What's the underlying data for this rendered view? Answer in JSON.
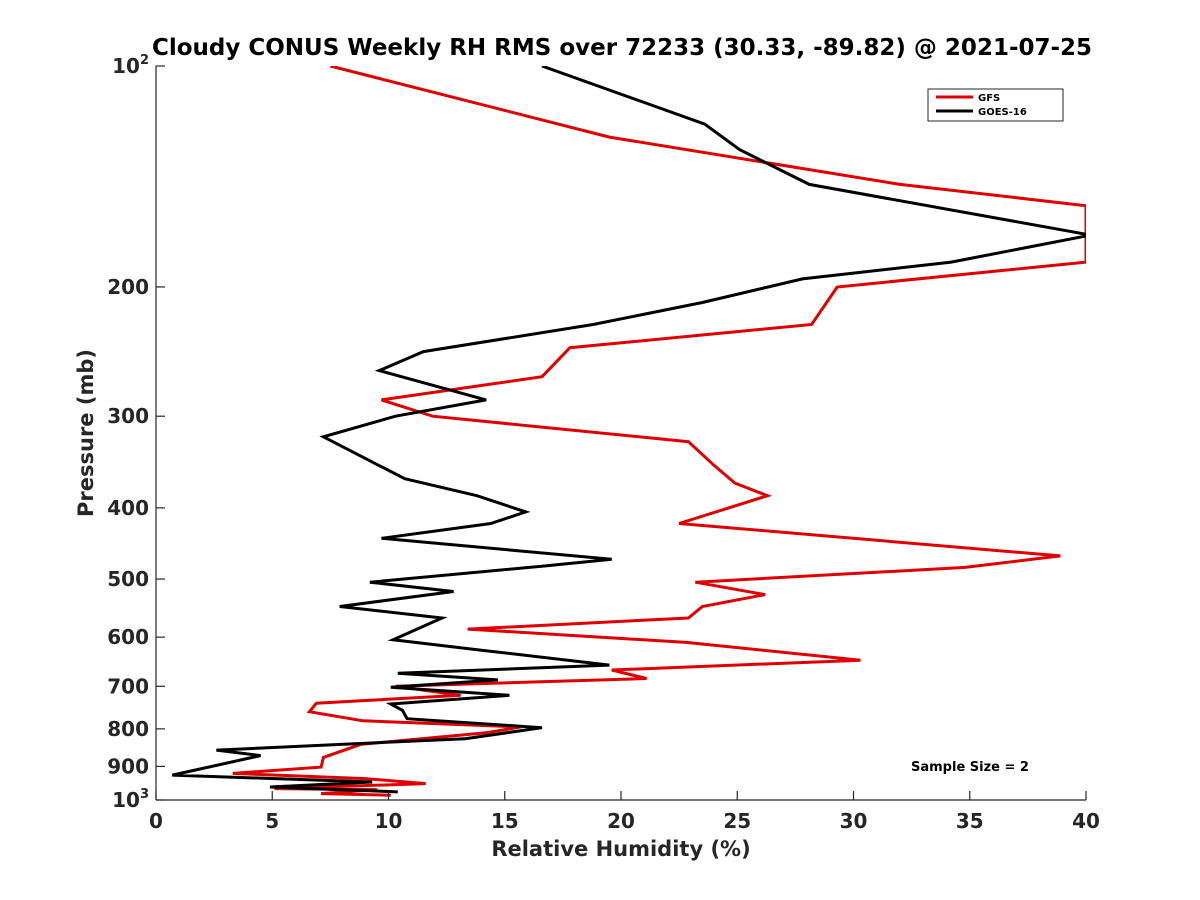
{
  "chart_data": {
    "type": "line",
    "title": "Cloudy CONUS Weekly RH RMS over 72233 (30.33, -89.82) @ 2021-07-25",
    "xlabel": "Relative Humidity (%)",
    "ylabel": "Pressure (mb)",
    "xlim": [
      0,
      40
    ],
    "ylim": [
      100,
      1000
    ],
    "yscale": "log",
    "y_reversed": true,
    "grid": false,
    "legend_position": "top-right",
    "x_ticks": [
      0,
      5,
      10,
      15,
      20,
      25,
      30,
      35,
      40
    ],
    "x_tick_labels": [
      "0",
      "5",
      "10",
      "15",
      "20",
      "25",
      "30",
      "35",
      "40"
    ],
    "y_ticks": [
      {
        "value": 100,
        "base": "10",
        "exp": "2"
      },
      {
        "value": 200,
        "label": "200"
      },
      {
        "value": 300,
        "label": "300"
      },
      {
        "value": 400,
        "label": "400"
      },
      {
        "value": 500,
        "label": "500"
      },
      {
        "value": 600,
        "label": "600"
      },
      {
        "value": 700,
        "label": "700"
      },
      {
        "value": 800,
        "label": "800"
      },
      {
        "value": 900,
        "label": "900"
      },
      {
        "value": 1000,
        "base": "10",
        "exp": "3"
      }
    ],
    "annotation": "Sample Size = 2",
    "series": [
      {
        "name": "GFS",
        "color": "#e00000",
        "points": [
          [
            7.5,
            100
          ],
          [
            19.5,
            125
          ],
          [
            32,
            145
          ],
          [
            40,
            155
          ],
          [
            40,
            185
          ],
          [
            29.3,
            200
          ],
          [
            28.2,
            225
          ],
          [
            17.8,
            242
          ],
          [
            16.6,
            265
          ],
          [
            9.7,
            285
          ],
          [
            11.9,
            300
          ],
          [
            22.9,
            325
          ],
          [
            24,
            350
          ],
          [
            24.9,
            370
          ],
          [
            26.3,
            385
          ],
          [
            22.5,
            420
          ],
          [
            38.9,
            465
          ],
          [
            34.8,
            482
          ],
          [
            23.2,
            505
          ],
          [
            26.2,
            525
          ],
          [
            23.5,
            545
          ],
          [
            22.9,
            565
          ],
          [
            13.4,
            585
          ],
          [
            22.8,
            610
          ],
          [
            30.3,
            645
          ],
          [
            19.6,
            665
          ],
          [
            21.1,
            683
          ],
          [
            10.3,
            700
          ],
          [
            13.1,
            720
          ],
          [
            6.9,
            738
          ],
          [
            6.6,
            758
          ],
          [
            8.9,
            780
          ],
          [
            15.7,
            795
          ],
          [
            14.2,
            810
          ],
          [
            8.8,
            840
          ],
          [
            7.2,
            875
          ],
          [
            7.1,
            902
          ],
          [
            3.3,
            920
          ],
          [
            9,
            935
          ],
          [
            11.6,
            950
          ],
          [
            5.1,
            965
          ],
          [
            9.5,
            968
          ],
          [
            7.1,
            980
          ],
          [
            10.1,
            985
          ]
        ]
      },
      {
        "name": "GOES-16",
        "color": "#000000",
        "points": [
          [
            16.6,
            100
          ],
          [
            23.6,
            120
          ],
          [
            25.1,
            130
          ],
          [
            28.1,
            145
          ],
          [
            40.2,
            170
          ],
          [
            34.2,
            185
          ],
          [
            27.8,
            195
          ],
          [
            23.5,
            210
          ],
          [
            18.8,
            225
          ],
          [
            11.5,
            245
          ],
          [
            9.6,
            260
          ],
          [
            14.2,
            285
          ],
          [
            10.3,
            300
          ],
          [
            7.2,
            320
          ],
          [
            9.2,
            345
          ],
          [
            10.7,
            365
          ],
          [
            13.8,
            385
          ],
          [
            15.9,
            405
          ],
          [
            14.4,
            420
          ],
          [
            9.7,
            440
          ],
          [
            19.6,
            470
          ],
          [
            16.7,
            480
          ],
          [
            9.2,
            505
          ],
          [
            12.8,
            520
          ],
          [
            7.9,
            545
          ],
          [
            12.3,
            565
          ],
          [
            10.2,
            605
          ],
          [
            14,
            625
          ],
          [
            19.5,
            655
          ],
          [
            10.4,
            672
          ],
          [
            14.7,
            686
          ],
          [
            10.1,
            702
          ],
          [
            15.2,
            720
          ],
          [
            10.1,
            740
          ],
          [
            10.6,
            755
          ],
          [
            10.8,
            775
          ],
          [
            16.6,
            797
          ],
          [
            13.3,
            825
          ],
          [
            2.6,
            855
          ],
          [
            4.5,
            870
          ],
          [
            0.7,
            925
          ],
          [
            9.3,
            945
          ],
          [
            4.9,
            960
          ],
          [
            10.4,
            975
          ]
        ]
      }
    ]
  }
}
